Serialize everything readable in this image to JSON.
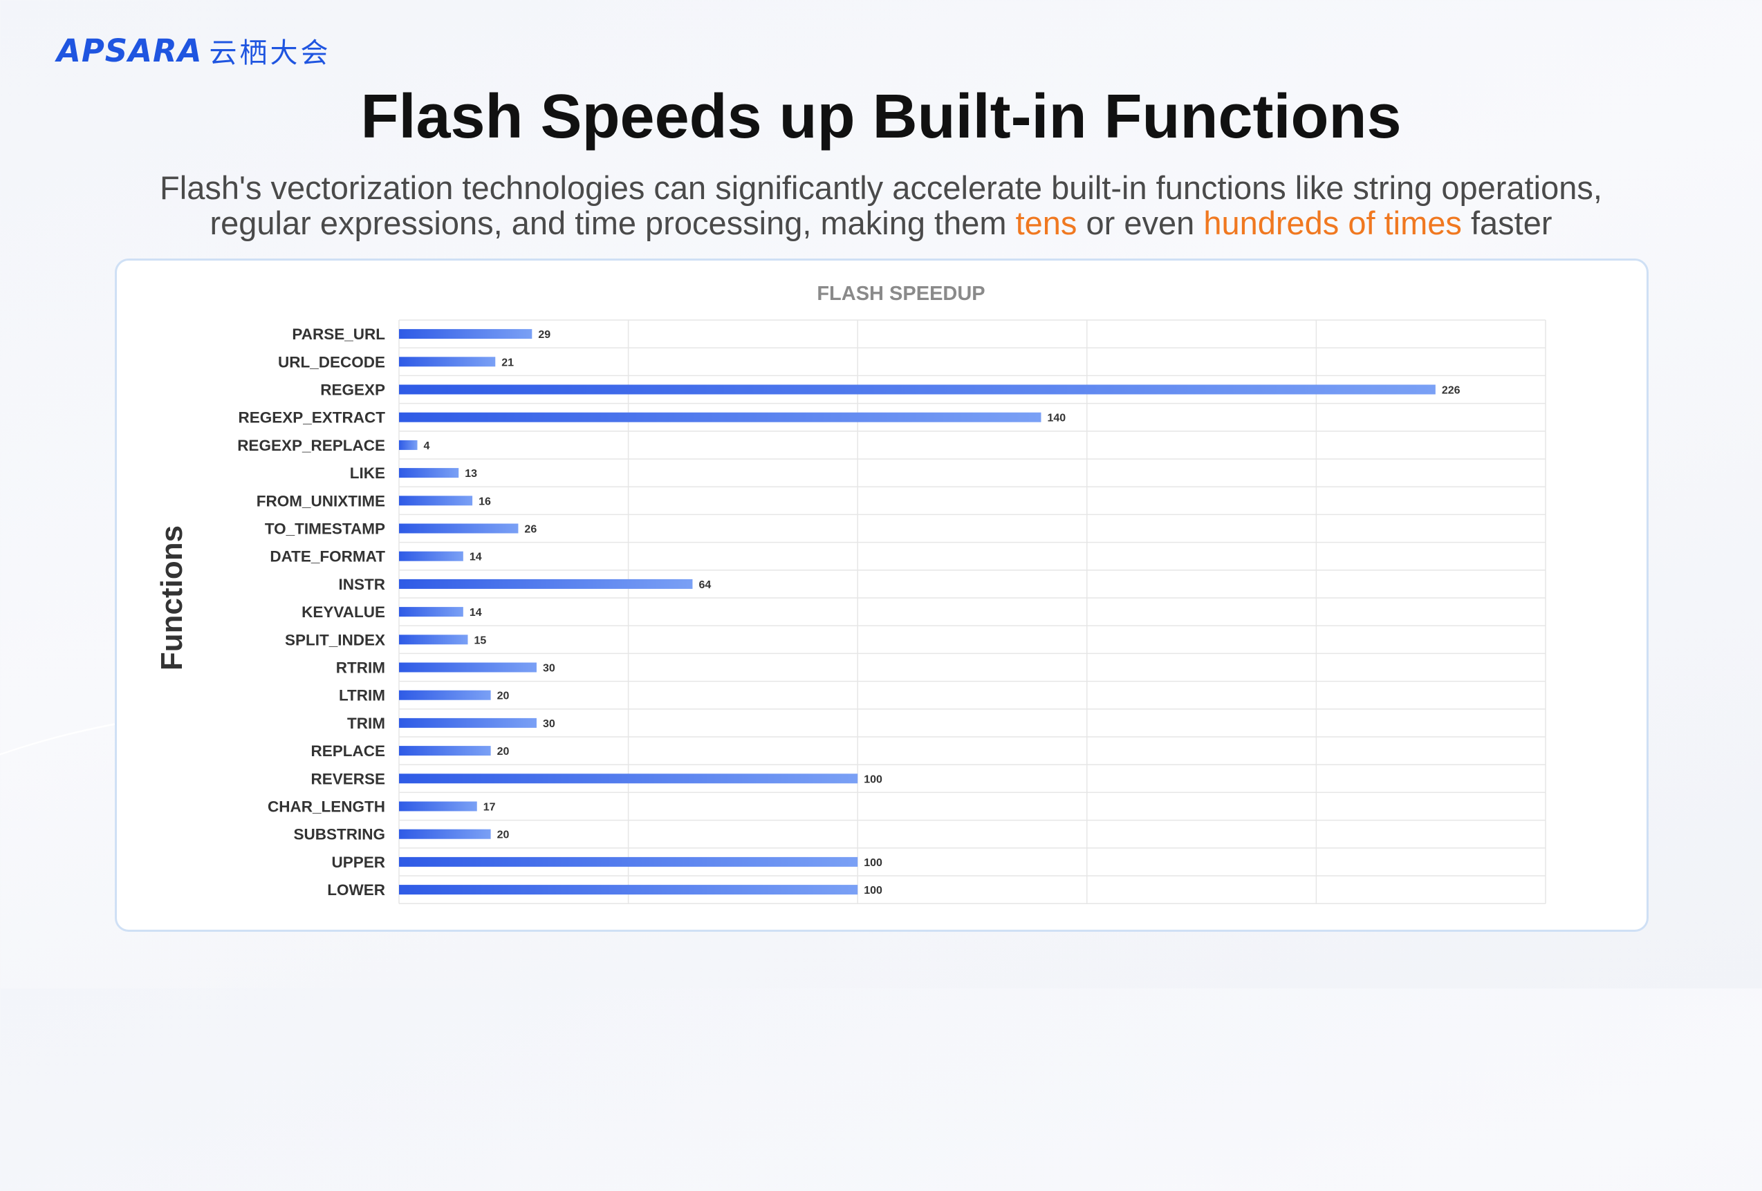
{
  "logo": {
    "latin": "APSARA",
    "cjk": "云栖大会",
    "color": "#1f55e0"
  },
  "header": {
    "title": "Flash Speeds up Built-in Functions",
    "subtitle_line1": "Flash's vectorization technologies can significantly accelerate built-in functions like string operations,",
    "subtitle_line2_pre": "regular expressions, and time processing, making them ",
    "subtitle_hl1": "tens",
    "subtitle_mid": " or even ",
    "subtitle_hl2": "hundreds of times",
    "subtitle_post": " faster",
    "highlight_color": "#f07820"
  },
  "chart_data": {
    "type": "bar",
    "orientation": "horizontal",
    "title": "FLASH SPEEDUP",
    "ylabel": "Functions",
    "xlabel": "",
    "xlim": [
      0,
      250
    ],
    "grid": true,
    "legend": "none",
    "bar_color_start": "#2f5be6",
    "bar_color_end": "#7aa0f5",
    "categories": [
      "PARSE_URL",
      "URL_DECODE",
      "REGEXP",
      "REGEXP_EXTRACT",
      "REGEXP_REPLACE",
      "LIKE",
      "FROM_UNIXTIME",
      "TO_TIMESTAMP",
      "DATE_FORMAT",
      "INSTR",
      "KEYVALUE",
      "SPLIT_INDEX",
      "RTRIM",
      "LTRIM",
      "TRIM",
      "REPLACE",
      "REVERSE",
      "CHAR_LENGTH",
      "SUBSTRING",
      "UPPER",
      "LOWER"
    ],
    "values": [
      29,
      21,
      226,
      140,
      4,
      13,
      16,
      26,
      14,
      64,
      14,
      15,
      30,
      20,
      30,
      20,
      100,
      17,
      20,
      100,
      100
    ]
  }
}
